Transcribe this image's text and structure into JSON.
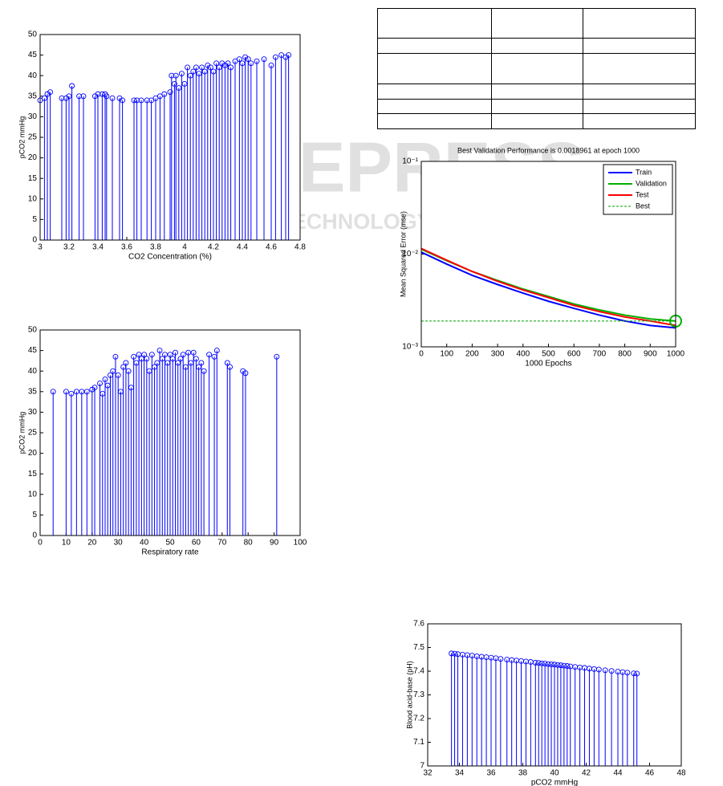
{
  "watermark": {
    "text": "SCITEPRESS",
    "subtext": "SCIENCE AND TECHNOLOGY PUBLICATIONS"
  },
  "chart_data": [
    {
      "type": "stem",
      "xlabel": "CO2 Concentration (%)",
      "ylabel": "pCO2 mmHg",
      "color": "#0000ff",
      "x": [
        3.0,
        3.03,
        3.05,
        3.07,
        3.15,
        3.18,
        3.2,
        3.22,
        3.27,
        3.3,
        3.38,
        3.4,
        3.43,
        3.45,
        3.46,
        3.5,
        3.55,
        3.57,
        3.65,
        3.67,
        3.7,
        3.74,
        3.77,
        3.8,
        3.83,
        3.86,
        3.9,
        3.91,
        3.93,
        3.94,
        3.96,
        3.98,
        4.0,
        4.02,
        4.04,
        4.06,
        4.08,
        4.1,
        4.12,
        4.14,
        4.16,
        4.18,
        4.2,
        4.22,
        4.24,
        4.26,
        4.28,
        4.3,
        4.32,
        4.35,
        4.38,
        4.4,
        4.42,
        4.44,
        4.46,
        4.5,
        4.55,
        4.6,
        4.63,
        4.67,
        4.7,
        4.72
      ],
      "values": [
        34,
        34.5,
        35.5,
        36,
        34.5,
        34.5,
        35,
        37.5,
        35,
        35,
        35,
        35.5,
        35.5,
        35.5,
        35,
        34.5,
        34.5,
        34,
        34,
        34,
        34,
        34,
        34,
        34.5,
        35,
        35.5,
        36,
        40,
        38,
        40,
        37,
        40.5,
        38,
        42,
        40,
        41,
        42,
        40.5,
        42,
        41,
        42.5,
        42,
        41,
        43,
        42,
        43,
        42.5,
        43,
        42,
        43.5,
        44,
        43,
        44.5,
        44,
        43,
        43.5,
        44,
        42.5,
        44.5,
        45,
        44.5,
        45
      ],
      "xlim": [
        3,
        4.8
      ],
      "xticks": [
        3,
        3.2,
        3.4,
        3.6,
        3.8,
        4,
        4.2,
        4.4,
        4.6,
        4.8
      ],
      "ylim": [
        0,
        50
      ],
      "yticks": [
        0,
        5,
        10,
        15,
        20,
        25,
        30,
        35,
        40,
        45,
        50
      ]
    },
    {
      "type": "stem",
      "xlabel": "Respiratory rate",
      "ylabel": "pCO2 mmHg",
      "color": "#0000ff",
      "x": [
        5,
        10,
        12,
        14,
        16,
        18,
        20,
        21,
        23,
        24,
        25,
        26,
        27,
        28,
        29,
        30,
        31,
        32,
        33,
        34,
        35,
        36,
        37,
        38,
        39,
        40,
        41,
        42,
        43,
        44,
        45,
        46,
        47,
        48,
        49,
        50,
        51,
        52,
        53,
        54,
        55,
        56,
        57,
        58,
        59,
        60,
        61,
        62,
        63,
        65,
        67,
        68,
        72,
        73,
        78,
        79,
        91
      ],
      "values": [
        35,
        35,
        34.5,
        35,
        35,
        35,
        35.5,
        36,
        37,
        34.5,
        38,
        36.5,
        39,
        40,
        43.5,
        39,
        35,
        41,
        42,
        40,
        36,
        43.5,
        42,
        44,
        43,
        44,
        43,
        40,
        44,
        41,
        42,
        45,
        43,
        44,
        42,
        44,
        43,
        44.5,
        42,
        43,
        44,
        41,
        44.5,
        42,
        44.5,
        43,
        41,
        42,
        40,
        44,
        43.5,
        45,
        42,
        41,
        40,
        39.5,
        43.5
      ],
      "xlim": [
        0,
        100
      ],
      "xticks": [
        0,
        10,
        20,
        30,
        40,
        50,
        60,
        70,
        80,
        90,
        100
      ],
      "ylim": [
        0,
        50
      ],
      "yticks": [
        0,
        5,
        10,
        15,
        20,
        25,
        30,
        35,
        40,
        45,
        50
      ]
    },
    {
      "type": "line",
      "title": "Best Validation Performance is 0.0018961 at epoch 1000",
      "xlabel": "1000 Epochs",
      "ylabel": "Mean Squared Error (mse)",
      "yscale": "log",
      "legend": "top-right",
      "x": [
        0,
        100,
        200,
        300,
        400,
        500,
        600,
        700,
        800,
        900,
        1000
      ],
      "series": [
        {
          "name": "Train",
          "color": "#0000ff",
          "values": [
            0.0105,
            0.0078,
            0.0059,
            0.0047,
            0.0038,
            0.0031,
            0.0026,
            0.0022,
            0.0019,
            0.0017,
            0.0016
          ]
        },
        {
          "name": "Validation",
          "color": "#00b000",
          "values": [
            0.0113,
            0.0085,
            0.0065,
            0.0052,
            0.0042,
            0.0035,
            0.0029,
            0.0025,
            0.0022,
            0.002,
            0.0018961
          ]
        },
        {
          "name": "Test",
          "color": "#ff0000",
          "values": [
            0.0115,
            0.0086,
            0.0065,
            0.0051,
            0.0041,
            0.0034,
            0.0028,
            0.0024,
            0.0021,
            0.0019,
            0.0017
          ]
        },
        {
          "name": "Best",
          "color": "#00a000",
          "dashed": true,
          "values": [
            0.0018961,
            0.0018961,
            0.0018961,
            0.0018961,
            0.0018961,
            0.0018961,
            0.0018961,
            0.0018961,
            0.0018961,
            0.0018961,
            0.0018961
          ]
        }
      ],
      "xlim": [
        0,
        1000
      ],
      "xticks": [
        0,
        100,
        200,
        300,
        400,
        500,
        600,
        700,
        800,
        900,
        1000
      ],
      "ylim": [
        0.001,
        0.1
      ],
      "yticks": [
        {
          "value": 0.001,
          "label": "10⁻³"
        },
        {
          "value": 0.01,
          "label": "10⁻²"
        },
        {
          "value": 0.1,
          "label": "10⁻¹"
        }
      ]
    },
    {
      "type": "stem",
      "xlabel": "pCO2 mmHg",
      "ylabel": "Blood acid-base (pH)",
      "color": "#0000ff",
      "x": [
        33.5,
        33.7,
        33.9,
        34.2,
        34.5,
        34.8,
        35.1,
        35.4,
        35.7,
        36.0,
        36.3,
        36.6,
        37.0,
        37.3,
        37.6,
        37.9,
        38.2,
        38.5,
        38.8,
        39.0,
        39.2,
        39.4,
        39.6,
        39.8,
        40.0,
        40.2,
        40.4,
        40.6,
        40.8,
        41.0,
        41.3,
        41.6,
        41.9,
        42.2,
        42.5,
        42.8,
        43.2,
        43.6,
        44.0,
        44.3,
        44.6,
        45.0,
        45.2
      ],
      "values": [
        7.475,
        7.474,
        7.472,
        7.47,
        7.468,
        7.466,
        7.463,
        7.461,
        7.459,
        7.457,
        7.455,
        7.452,
        7.449,
        7.447,
        7.445,
        7.443,
        7.441,
        7.439,
        7.436,
        7.435,
        7.433,
        7.432,
        7.43,
        7.429,
        7.428,
        7.426,
        7.425,
        7.423,
        7.422,
        7.42,
        7.418,
        7.416,
        7.414,
        7.411,
        7.409,
        7.407,
        7.404,
        7.401,
        7.398,
        7.396,
        7.394,
        7.391,
        7.39
      ],
      "xlim": [
        32,
        48
      ],
      "xticks": [
        32,
        34,
        36,
        38,
        40,
        42,
        44,
        46,
        48
      ],
      "ylim": [
        7,
        7.6
      ],
      "yticks": [
        7,
        7.1,
        7.2,
        7.3,
        7.4,
        7.5,
        7.6
      ]
    }
  ]
}
